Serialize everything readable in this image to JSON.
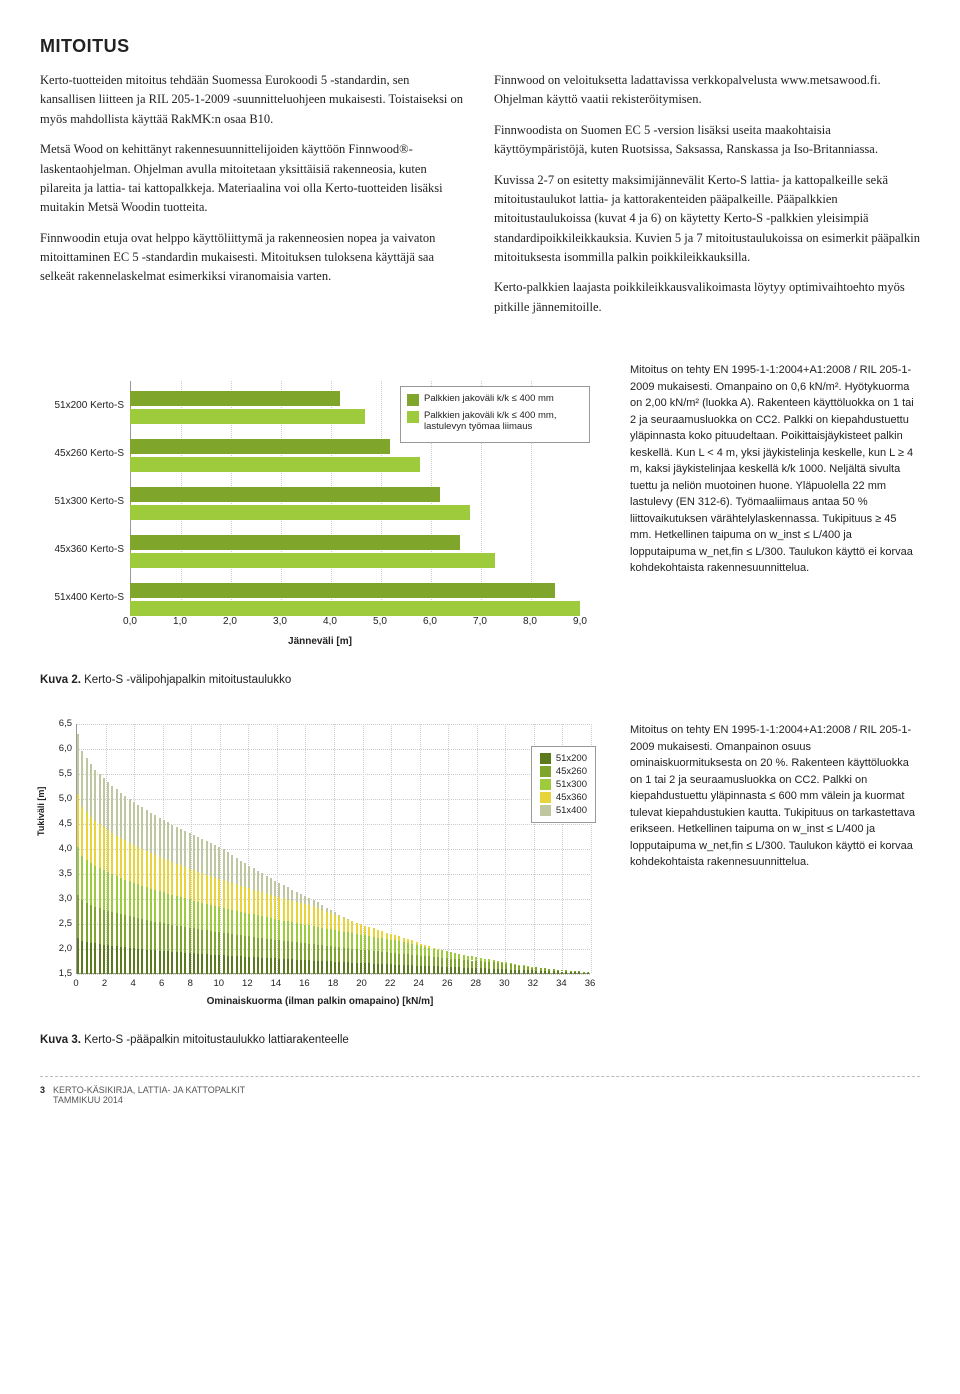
{
  "title": "MITOITUS",
  "body_left": [
    "Kerto-tuotteiden mitoitus tehdään Suomessa Eurokoodi 5 -standardin, sen kansallisen liitteen ja RIL 205-1-2009 -suunnitteluohjeen mukaisesti. Toistaiseksi on myös mahdollista käyttää RakMK:n osaa B10.",
    "Metsä Wood on kehittänyt rakennesuunnittelijoiden käyttöön Finnwood®-laskentaohjelman. Ohjelman avulla mitoitetaan yksittäisiä rakenneosia, kuten pilareita ja lattia- tai kattopalkkeja. Materiaalina voi olla Kerto-tuotteiden lisäksi muitakin Metsä Woodin tuotteita.",
    "Finnwoodin etuja ovat helppo käyttöliittymä ja rakenneosien nopea ja vaivaton mitoittaminen EC 5 -standardin mukaisesti. Mitoituksen tuloksena käyttäjä saa selkeät rakennelaskelmat esimerkiksi viranomaisia varten."
  ],
  "body_right": [
    "Finnwood on veloituksetta ladattavissa verkkopalvelusta www.metsawood.fi. Ohjelman käyttö vaatii rekisteröitymisen.",
    "Finnwoodista on Suomen EC 5 -version lisäksi useita maakohtaisia käyttöympäristöjä, kuten Ruotsissa, Saksassa, Ranskassa ja Iso-Britanniassa.",
    "Kuvissa 2-7 on esitetty maksimijännevälit Kerto-S lattia- ja kattopalkeille sekä mitoitustaulukot lattia- ja kattorakenteiden pääpalkeille. Pääpalkkien mitoitustaulukoissa (kuvat 4 ja 6) on käytetty Kerto-S -palkkien yleisimpiä standardipoikkileikkauksia. Kuvien 5 ja 7 mitoitustaulukoissa on esimerkit pääpalkin mitoituksesta isommilla palkin poikkileikkauksilla.",
    "Kerto-palkkien laajasta poikkileikkausvalikoimasta löytyy optimivaihtoehto myös pitkille jännemitoille."
  ],
  "chart1": {
    "type": "bar_horizontal_grouped",
    "xlabel": "Jänneväli [m]",
    "xmin": 0,
    "xmax": 9,
    "xstep": 1,
    "categories": [
      "51x200 Kerto-S",
      "45x260 Kerto-S",
      "51x300 Kerto-S",
      "45x360 Kerto-S",
      "51x400 Kerto-S"
    ],
    "series": [
      {
        "label": "Palkkien jakoväli k/k ≤ 400 mm",
        "color": "#7fa52b",
        "values": [
          4.2,
          5.2,
          6.2,
          6.6,
          8.5
        ]
      },
      {
        "label": "Palkkien jakoväli k/k ≤ 400 mm, lastulevyn työmaa liimaus",
        "color": "#9dcb3b",
        "values": [
          4.7,
          5.8,
          6.8,
          7.3,
          9.0
        ]
      }
    ]
  },
  "side1": "Mitoitus on tehty EN 1995-1-1:2004+A1:2008 / RIL 205-1-2009 mukaisesti. Omanpaino on 0,6 kN/m². Hyötykuorma on 2,00 kN/m² (luokka A). Rakenteen käyttöluokka on 1 tai 2 ja seuraamusluokka on CC2. Palkki on kiepahdustuettu yläpinnasta koko pituudeltaan. Poikittaisjäykisteet palkin keskellä. Kun L < 4 m, yksi jäykistelinja keskelle, kun L ≥ 4 m, kaksi jäykistelinjaa keskellä k/k 1000. Neljältä sivulta tuettu ja neliön muotoinen huone. Yläpuolella 22 mm lastulevy (EN 312-6). Työmaaliimaus antaa 50 % liittovaikutuksen värähtelylaskennas­sa. Tukipituus ≥ 45 mm. Hetkellinen taipuma on w_inst ≤ L/400 ja lopputaipuma w_net,fin ≤ L/300. Taulukon käyttö ei korvaa kohdekohtaista rakenne­suunnittelua.",
  "caption1_a": "Kuva 2.",
  "caption1_b": "Kerto-S -välipohjapalkin mitoitustaulukko",
  "chart2": {
    "type": "stacked_column",
    "xlabel": "Ominaiskuorma (ilman palkin omapaino) [kN/m]",
    "ylabel": "Tukiväli [m]",
    "xmin": 0,
    "xmax": 36,
    "xstep": 2,
    "ymin": 1.5,
    "ymax": 6.5,
    "ystep": 0.5,
    "series": [
      {
        "label": "51x200",
        "color": "#5a7a1c"
      },
      {
        "label": "45x260",
        "color": "#7fa52b"
      },
      {
        "label": "51x300",
        "color": "#9dcb3b"
      },
      {
        "label": "45x360",
        "color": "#e7d33a"
      },
      {
        "label": "51x400",
        "color": "#bfc7a0"
      }
    ]
  },
  "side2": "Mitoitus on tehty EN 1995-1-1:2004+A1:2008 / RIL 205-1-2009 mukaisesti. Omanpainon osuus ominaiskuormituksesta on 20 %. Rakenteen käyttöluokka on 1 tai 2 ja seuraamusluokka on CC2. Palkki on kiepahdustuettu yläpinnasta ≤ 600 mm välein ja kuormat tulevat kiepahdustukien kautta. Tukipituus on tarkastettava erikseen. Hetkellinen taipuma on w_inst ≤ L/400 ja lopputaipuma w_net,fin ≤ L/300. Taulukon käyttö ei korvaa kohdekohtaista rakennesuunnittelua.",
  "caption2_a": "Kuva 3.",
  "caption2_b": "Kerto-S -pääpalkin mitoitustaulukko lattiarakenteelle",
  "footer": {
    "page": "3",
    "doc": "KERTO-KÄSIKIRJA, LATTIA- JA KATTOPALKIT",
    "date": "TAMMIKUU 2014"
  }
}
